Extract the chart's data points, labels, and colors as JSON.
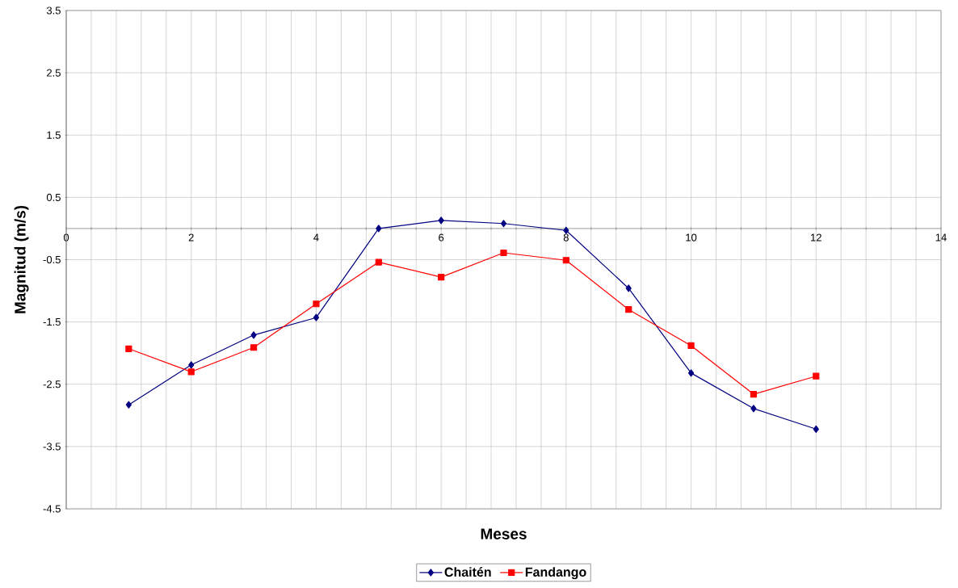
{
  "chart_data": {
    "type": "line",
    "xlabel": "Meses",
    "ylabel": "Magnitud (m/s)",
    "x": [
      1,
      2,
      3,
      4,
      5,
      6,
      7,
      8,
      9,
      10,
      11,
      12
    ],
    "series": [
      {
        "name": "Chaitén",
        "color": "#000080",
        "marker": "diamond",
        "values": [
          -2.83,
          -2.19,
          -1.71,
          -1.43,
          0.0,
          0.13,
          0.08,
          -0.03,
          -0.96,
          -2.32,
          -2.89,
          -3.22
        ]
      },
      {
        "name": "Fandango",
        "color": "#ff0000",
        "marker": "square",
        "values": [
          -1.93,
          -2.3,
          -1.91,
          -1.21,
          -0.54,
          -0.78,
          -0.39,
          -0.51,
          -1.3,
          -1.88,
          -2.66,
          -2.37
        ]
      }
    ],
    "xlim": [
      0,
      14
    ],
    "xticks": [
      0,
      {
        "value": 0.4,
        "label": null
      },
      {
        "value": 0.8,
        "label": null
      },
      {
        "value": 1.2,
        "label": null
      },
      {
        "value": 1.6,
        "label": null
      },
      2,
      {
        "value": 2.4,
        "label": null
      },
      {
        "value": 2.8,
        "label": null
      },
      {
        "value": 3.2,
        "label": null
      },
      {
        "value": 3.6,
        "label": null
      },
      4,
      {
        "value": 4.4,
        "label": null
      },
      {
        "value": 4.8,
        "label": null
      },
      {
        "value": 5.2,
        "label": null
      },
      {
        "value": 5.6,
        "label": null
      },
      6,
      {
        "value": 6.4,
        "label": null
      },
      {
        "value": 6.8,
        "label": null
      },
      {
        "value": 7.2,
        "label": null
      },
      {
        "value": 7.6,
        "label": null
      },
      8,
      {
        "value": 8.4,
        "label": null
      },
      {
        "value": 8.8,
        "label": null
      },
      {
        "value": 9.2,
        "label": null
      },
      {
        "value": 9.6,
        "label": null
      },
      10,
      {
        "value": 10.4,
        "label": null
      },
      {
        "value": 10.8,
        "label": null
      },
      {
        "value": 11.2,
        "label": null
      },
      {
        "value": 11.6,
        "label": null
      },
      12,
      {
        "value": 12.4,
        "label": null
      },
      {
        "value": 12.8,
        "label": null
      },
      {
        "value": 13.2,
        "label": null
      },
      {
        "value": 13.6,
        "label": null
      },
      14
    ],
    "ylim": [
      -4.5,
      3.5
    ],
    "yticks": [
      -4.5,
      -3.5,
      -2.5,
      -1.5,
      -0.5,
      0.5,
      1.5,
      2.5,
      3.5
    ],
    "grid": true,
    "legend": "bottom",
    "line_style": "solid"
  }
}
